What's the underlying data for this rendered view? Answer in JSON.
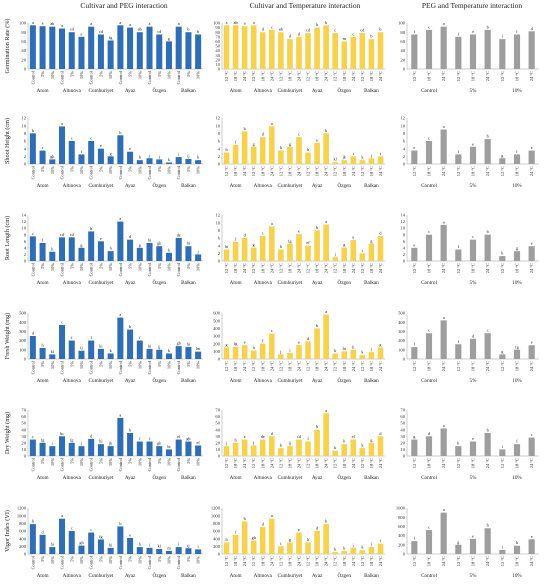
{
  "colors": {
    "peg": "#2f6eb5",
    "temp": "#f6d24f",
    "pegtemp": "#9e9e9e"
  },
  "figure": {
    "col_titles": [
      "Cultivar and PEG interaction",
      "Cultivar and Temperature interaction",
      "PEG and Temperature interaction"
    ],
    "cultivars": [
      "Atom",
      "Altınova",
      "Cumhuriyet",
      "Ayaz",
      "Özgen",
      "Balkan"
    ],
    "peg_levels": [
      "Control",
      "5%",
      "10%"
    ],
    "temp_levels": [
      "12 °C",
      "18 °C",
      "24 °C"
    ]
  },
  "chart_data": [
    {
      "type": "bar",
      "panel": "germ-peg",
      "ylabel": "Germination Rate (%)",
      "ylim": [
        0,
        100
      ],
      "yticks": [
        0,
        20,
        40,
        60,
        80,
        100
      ],
      "values": [
        95,
        93,
        92,
        88,
        80,
        70,
        92,
        75,
        62,
        95,
        90,
        80,
        92,
        75,
        60,
        92,
        80,
        75
      ],
      "letters": [
        "a",
        "a",
        "ab",
        "a",
        "cd",
        "e",
        "a",
        "cd",
        "fg",
        "a",
        "a",
        "ab",
        "a",
        "cd",
        "g",
        "a",
        "b",
        "b"
      ]
    },
    {
      "type": "bar",
      "panel": "germ-temp",
      "ylabel": "Germination Rate (%)",
      "ylim": [
        0,
        100
      ],
      "yticks": [
        0,
        10,
        20,
        30,
        40,
        50,
        60,
        70,
        80,
        90,
        100
      ],
      "values": [
        95,
        95,
        93,
        95,
        80,
        85,
        80,
        65,
        70,
        78,
        90,
        95,
        78,
        60,
        70,
        78,
        65,
        80
      ],
      "letters": [
        "a",
        "ab",
        "a",
        "a",
        "d",
        "c",
        "ab",
        "d",
        "d",
        "cd",
        "b",
        "b",
        "c",
        "m",
        "c",
        "cd",
        "b",
        "b"
      ]
    },
    {
      "type": "bar",
      "panel": "germ-pt",
      "ylabel": "Germination Rate (%)",
      "ylim": [
        0,
        100
      ],
      "yticks": [
        0,
        20,
        40,
        60,
        80,
        100
      ],
      "values": [
        75,
        85,
        92,
        70,
        75,
        85,
        65,
        75,
        82
      ],
      "letters": [
        "f",
        "c",
        "a",
        "f",
        "e",
        "b",
        "i",
        "f",
        "d"
      ]
    },
    {
      "type": "bar",
      "panel": "shoot-peg",
      "ylabel": "Shoot Height (cm)",
      "ylim": [
        0,
        12
      ],
      "yticks": [
        0,
        2,
        4,
        6,
        8,
        10,
        12
      ],
      "values": [
        8.0,
        3.5,
        1.2,
        9.8,
        6.0,
        2.5,
        6.0,
        4.0,
        2.0,
        7.5,
        3.2,
        1.0,
        1.5,
        1.2,
        0.4,
        1.8,
        1.3,
        1.0
      ],
      "letters": [
        "b",
        "e",
        "gh",
        "a",
        "c",
        "f",
        "c",
        "e",
        "g",
        "b",
        "e",
        "h",
        "j",
        "j",
        "k",
        "i",
        "ij",
        "k"
      ]
    },
    {
      "type": "bar",
      "panel": "shoot-temp",
      "ylabel": "Shoot Height (cm)",
      "ylim": [
        0,
        12
      ],
      "yticks": [
        0,
        2,
        4,
        6,
        8,
        10,
        12
      ],
      "values": [
        3.0,
        5.0,
        8.5,
        4.5,
        7.0,
        9.8,
        3.5,
        4.5,
        7.0,
        3.0,
        5.5,
        8.0,
        0.5,
        1.0,
        2.0,
        1.0,
        1.5,
        2.0
      ],
      "letters": [
        "h",
        "f",
        "b",
        "g",
        "d",
        "a",
        "h",
        "g",
        "c",
        "h",
        "e",
        "b",
        "kl",
        "jk",
        "i",
        "k",
        "j",
        "i"
      ]
    },
    {
      "type": "bar",
      "panel": "shoot-pt",
      "ylabel": "Shoot Height (cm)",
      "ylim": [
        0,
        12
      ],
      "yticks": [
        0,
        2,
        4,
        6,
        8,
        10,
        12
      ],
      "values": [
        3.5,
        6.0,
        9.0,
        2.5,
        4.5,
        6.5,
        1.5,
        2.5,
        3.5
      ],
      "letters": [
        "e",
        "c",
        "a",
        "f",
        "e",
        "b",
        "g",
        "f",
        "e"
      ]
    },
    {
      "type": "bar",
      "panel": "root-peg",
      "ylabel": "Root Length (cm)",
      "ylim": [
        0,
        14
      ],
      "yticks": [
        0,
        2,
        4,
        6,
        8,
        10,
        12,
        14
      ],
      "values": [
        7.5,
        5.5,
        2.8,
        7.2,
        7.2,
        4.0,
        9.0,
        6.0,
        3.0,
        12.0,
        6.5,
        4.0,
        5.5,
        4.5,
        2.5,
        7.0,
        4.5,
        2.0
      ],
      "letters": [
        "c",
        "f",
        "h",
        "cd",
        "cd",
        "g",
        "b",
        "e",
        "h",
        "a",
        "d",
        "g",
        "hi",
        "gh",
        "k",
        "de",
        "hi",
        "j"
      ]
    },
    {
      "type": "bar",
      "panel": "root-temp",
      "ylabel": "Root Length (cm)",
      "ylim": [
        0,
        12
      ],
      "yticks": [
        0,
        2,
        4,
        6,
        8,
        10,
        12
      ],
      "values": [
        3.0,
        5.0,
        6.0,
        3.5,
        6.5,
        9.0,
        3.0,
        4.5,
        7.0,
        4.0,
        8.0,
        9.5,
        1.0,
        3.5,
        5.5,
        2.0,
        4.5,
        6.5
      ],
      "letters": [
        "hi",
        "f",
        "d",
        "g",
        "c",
        "a",
        "h",
        "fg",
        "e",
        "ef",
        "b",
        "a",
        "j",
        "g",
        "e",
        "i",
        "g",
        "d"
      ]
    },
    {
      "type": "bar",
      "panel": "root-pt",
      "ylabel": "Root Length (cm)",
      "ylim": [
        0,
        14
      ],
      "yticks": [
        0,
        2,
        4,
        6,
        8,
        10,
        12,
        14
      ],
      "values": [
        4.0,
        8.0,
        11.0,
        3.5,
        6.5,
        8.0,
        1.5,
        3.0,
        4.5
      ],
      "letters": [
        "e",
        "c",
        "a",
        "f",
        "c",
        "b",
        "h",
        "g",
        "e"
      ]
    },
    {
      "type": "bar",
      "panel": "fresh-peg",
      "ylabel": "Fresh Weight (mg)",
      "ylim": [
        0,
        500
      ],
      "yticks": [
        0,
        100,
        200,
        300,
        400,
        500
      ],
      "values": [
        250,
        120,
        50,
        370,
        200,
        90,
        200,
        110,
        60,
        450,
        320,
        200,
        110,
        100,
        60,
        140,
        130,
        80
      ],
      "letters": [
        "d",
        "h",
        "kl",
        "c",
        "f",
        "ij",
        "f",
        "hi",
        "k",
        "a",
        "b",
        "f",
        "hi",
        "ij",
        "k",
        "gh",
        "hi",
        "lm"
      ]
    },
    {
      "type": "bar",
      "panel": "fresh-temp",
      "ylabel": "Fresh Weight (mg)",
      "ylim": [
        0,
        600
      ],
      "yticks": [
        0,
        100,
        200,
        300,
        400,
        500,
        600
      ],
      "values": [
        150,
        160,
        180,
        110,
        200,
        330,
        60,
        80,
        180,
        230,
        400,
        580,
        70,
        100,
        120,
        50,
        90,
        150
      ],
      "letters": [
        "g",
        "fg",
        "e",
        "h",
        "f",
        "c",
        "j",
        "i",
        "e",
        "d",
        "b",
        "a",
        "k",
        "hi",
        "h",
        "k",
        "j",
        "g"
      ]
    },
    {
      "type": "bar",
      "panel": "fresh-pt",
      "ylabel": "Fresh Weight (mg)",
      "ylim": [
        0,
        500
      ],
      "yticks": [
        0,
        100,
        200,
        300,
        400,
        500
      ],
      "values": [
        130,
        280,
        420,
        160,
        220,
        280,
        50,
        100,
        150
      ],
      "letters": [
        "f",
        "c",
        "a",
        "f",
        "d",
        "c",
        "g",
        "fg",
        "e"
      ]
    },
    {
      "type": "bar",
      "panel": "dry-peg",
      "ylabel": "Dry Weight (mg)",
      "ylim": [
        0,
        70
      ],
      "yticks": [
        0,
        10,
        20,
        30,
        40,
        50,
        60,
        70
      ],
      "values": [
        25,
        20,
        15,
        30,
        20,
        15,
        26,
        18,
        15,
        58,
        35,
        22,
        22,
        15,
        10,
        25,
        22,
        16
      ],
      "letters": [
        "c",
        "fg",
        "i",
        "bc",
        "fg",
        "j",
        "d",
        "hi",
        "jk",
        "a",
        "b",
        "f",
        "f",
        "gh",
        "hi",
        "ef",
        "gh",
        "ef"
      ]
    },
    {
      "type": "bar",
      "panel": "dry-temp",
      "ylabel": "Dry Weight (mg)",
      "ylim": [
        0,
        70
      ],
      "yticks": [
        0,
        10,
        20,
        30,
        40,
        50,
        60,
        70
      ],
      "values": [
        15,
        20,
        25,
        16,
        25,
        30,
        12,
        15,
        25,
        22,
        40,
        65,
        8,
        18,
        25,
        12,
        20,
        30
      ],
      "letters": [
        "j",
        "h",
        "e",
        "j",
        "de",
        "d",
        "k",
        "ij",
        "cd",
        "f",
        "b",
        "a",
        "k",
        "h",
        "ef",
        "k",
        "g",
        "d"
      ]
    },
    {
      "type": "bar",
      "panel": "dry-pt",
      "ylabel": "Dry Weight (mg)",
      "ylim": [
        0,
        70
      ],
      "yticks": [
        0,
        10,
        20,
        30,
        40,
        50,
        60,
        70
      ],
      "values": [
        25,
        30,
        42,
        15,
        22,
        35,
        10,
        18,
        28
      ],
      "letters": [
        "g",
        "d",
        "a",
        "h",
        "e",
        "b",
        "i",
        "f",
        "c"
      ]
    },
    {
      "type": "bar",
      "panel": "vigor-peg",
      "ylabel": "Vigor Index (VI)",
      "ylim": [
        0,
        1200
      ],
      "yticks": [
        0,
        200,
        400,
        600,
        800,
        1000,
        1200
      ],
      "values": [
        780,
        500,
        180,
        920,
        600,
        220,
        560,
        380,
        160,
        720,
        420,
        180,
        160,
        130,
        80,
        180,
        150,
        120
      ],
      "letters": [
        "b",
        "d",
        "hi",
        "a",
        "c",
        "gh",
        "c",
        "fg",
        "hi",
        "b",
        "e",
        "h",
        "i",
        "kl",
        "m",
        "i",
        "ij",
        "i"
      ]
    },
    {
      "type": "bar",
      "panel": "vigor-temp",
      "ylabel": "Vigor Index (VI)",
      "ylim": [
        0,
        1200
      ],
      "yticks": [
        0,
        200,
        400,
        600,
        800,
        1000,
        1200
      ],
      "values": [
        300,
        500,
        850,
        350,
        700,
        920,
        200,
        300,
        560,
        300,
        600,
        780,
        50,
        80,
        160,
        100,
        180,
        270
      ],
      "letters": [
        "h",
        "f",
        "b",
        "gh",
        "d",
        "a",
        "i",
        "g",
        "e",
        "h",
        "d",
        "b",
        "k",
        "k",
        "j",
        "k",
        "j",
        "i"
      ]
    },
    {
      "type": "bar",
      "panel": "vigor-pt",
      "ylabel": "Vigor Index (VI)",
      "ylim": [
        0,
        1000
      ],
      "yticks": [
        0,
        200,
        400,
        600,
        800,
        1000
      ],
      "values": [
        280,
        520,
        900,
        200,
        330,
        560,
        90,
        180,
        320
      ],
      "letters": [
        "f",
        "c",
        "a",
        "g",
        "e",
        "b",
        "i",
        "h",
        "e"
      ]
    }
  ]
}
